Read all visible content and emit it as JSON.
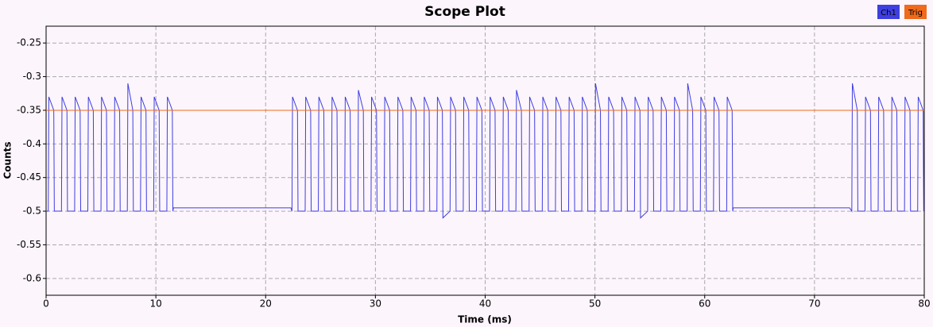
{
  "chart_data": {
    "type": "line",
    "title": "Scope Plot",
    "xlabel": "Time (ms)",
    "ylabel": "Counts",
    "xlim": [
      0,
      80
    ],
    "xticks": [
      0,
      10,
      20,
      30,
      40,
      50,
      60,
      70,
      80
    ],
    "ylim": [
      -0.625,
      -0.225
    ],
    "yticks": [
      -0.25,
      -0.3,
      -0.35,
      -0.4,
      -0.45,
      -0.5,
      -0.55,
      -0.6
    ],
    "grid": true,
    "legend": "top-right",
    "series": [
      {
        "name": "Ch1",
        "color": "#3f3fe0",
        "x": [
          0,
          0.2,
          0.25,
          0.7,
          0.75,
          1.4,
          1.45,
          1.9,
          1.95,
          2.6,
          2.65,
          3.1,
          3.15,
          3.8,
          3.85,
          4.3,
          4.35,
          5.0,
          5.05,
          5.5,
          5.55,
          6.2,
          6.25,
          6.7,
          6.75,
          7.4,
          7.45,
          7.9,
          7.95,
          8.6,
          8.65,
          9.1,
          9.15,
          9.8,
          9.85,
          10.3,
          10.35,
          11.0,
          11.05,
          11.5,
          11.55,
          11.6,
          22.3,
          22.4,
          22.45,
          22.9,
          22.95,
          23.6,
          23.65,
          24.1,
          24.15,
          24.8,
          24.85,
          25.3,
          25.35,
          26.0,
          26.05,
          26.5,
          26.55,
          27.2,
          27.25,
          27.7,
          27.75,
          28.4,
          28.45,
          28.9,
          28.95,
          29.6,
          29.65,
          30.1,
          30.15,
          30.8,
          30.85,
          31.3,
          31.35,
          32.0,
          32.05,
          32.5,
          32.55,
          33.2,
          33.25,
          33.7,
          33.75,
          34.4,
          34.45,
          34.9,
          34.95,
          35.6,
          35.65,
          36.1,
          36.15,
          36.8,
          36.85,
          37.3,
          37.35,
          38.0,
          38.05,
          38.5,
          38.55,
          39.2,
          39.25,
          39.7,
          39.75,
          40.4,
          40.45,
          40.9,
          40.95,
          41.6,
          41.65,
          42.1,
          42.15,
          42.8,
          42.85,
          43.3,
          43.35,
          44.0,
          44.05,
          44.5,
          44.55,
          45.2,
          45.25,
          45.7,
          45.75,
          46.4,
          46.45,
          46.9,
          46.95,
          47.6,
          47.65,
          48.1,
          48.15,
          48.8,
          48.85,
          49.3,
          49.35,
          50.0,
          50.05,
          50.5,
          50.55,
          51.2,
          51.25,
          51.7,
          51.75,
          52.4,
          52.45,
          52.9,
          52.95,
          53.6,
          53.65,
          54.1,
          54.15,
          54.8,
          54.85,
          55.3,
          55.35,
          56.0,
          56.05,
          56.5,
          56.55,
          57.2,
          57.25,
          57.7,
          57.75,
          58.4,
          58.45,
          58.9,
          58.95,
          59.6,
          59.65,
          60.1,
          60.15,
          60.8,
          60.85,
          61.3,
          61.35,
          62.0,
          62.05,
          62.5,
          62.55,
          62.6,
          73.2,
          73.4,
          73.45,
          73.9,
          73.95,
          74.6,
          74.65,
          75.1,
          75.15,
          75.8,
          75.85,
          76.3,
          76.35,
          77.0,
          77.05,
          77.5,
          77.55,
          78.2,
          78.25,
          78.7,
          78.75,
          79.4,
          79.45,
          79.9,
          79.95
        ],
        "values": [
          -0.5,
          -0.5,
          -0.33,
          -0.35,
          -0.5,
          -0.5,
          -0.33,
          -0.35,
          -0.5,
          -0.5,
          -0.33,
          -0.35,
          -0.5,
          -0.5,
          -0.33,
          -0.35,
          -0.5,
          -0.5,
          -0.33,
          -0.35,
          -0.5,
          -0.5,
          -0.33,
          -0.35,
          -0.5,
          -0.5,
          -0.31,
          -0.35,
          -0.5,
          -0.5,
          -0.33,
          -0.35,
          -0.5,
          -0.5,
          -0.33,
          -0.35,
          -0.5,
          -0.5,
          -0.33,
          -0.35,
          -0.5,
          -0.495,
          -0.495,
          -0.5,
          -0.33,
          -0.35,
          -0.5,
          -0.5,
          -0.33,
          -0.35,
          -0.5,
          -0.5,
          -0.33,
          -0.35,
          -0.5,
          -0.5,
          -0.33,
          -0.35,
          -0.5,
          -0.5,
          -0.33,
          -0.35,
          -0.5,
          -0.5,
          -0.32,
          -0.35,
          -0.5,
          -0.5,
          -0.33,
          -0.35,
          -0.5,
          -0.5,
          -0.33,
          -0.35,
          -0.5,
          -0.5,
          -0.33,
          -0.35,
          -0.5,
          -0.5,
          -0.33,
          -0.35,
          -0.5,
          -0.5,
          -0.33,
          -0.35,
          -0.5,
          -0.5,
          -0.33,
          -0.35,
          -0.51,
          -0.5,
          -0.33,
          -0.35,
          -0.5,
          -0.5,
          -0.33,
          -0.35,
          -0.5,
          -0.5,
          -0.33,
          -0.35,
          -0.5,
          -0.5,
          -0.33,
          -0.35,
          -0.5,
          -0.5,
          -0.33,
          -0.35,
          -0.5,
          -0.5,
          -0.32,
          -0.35,
          -0.5,
          -0.5,
          -0.33,
          -0.35,
          -0.5,
          -0.5,
          -0.33,
          -0.35,
          -0.5,
          -0.5,
          -0.33,
          -0.35,
          -0.5,
          -0.5,
          -0.33,
          -0.35,
          -0.5,
          -0.5,
          -0.33,
          -0.35,
          -0.5,
          -0.5,
          -0.31,
          -0.35,
          -0.5,
          -0.5,
          -0.33,
          -0.35,
          -0.5,
          -0.5,
          -0.33,
          -0.35,
          -0.5,
          -0.5,
          -0.33,
          -0.35,
          -0.51,
          -0.5,
          -0.33,
          -0.35,
          -0.5,
          -0.5,
          -0.33,
          -0.35,
          -0.5,
          -0.5,
          -0.33,
          -0.35,
          -0.5,
          -0.5,
          -0.31,
          -0.35,
          -0.5,
          -0.5,
          -0.33,
          -0.35,
          -0.5,
          -0.5,
          -0.33,
          -0.35,
          -0.5,
          -0.5,
          -0.33,
          -0.35,
          -0.5,
          -0.495,
          -0.495,
          -0.5,
          -0.31,
          -0.35,
          -0.5,
          -0.5,
          -0.33,
          -0.35,
          -0.5,
          -0.5,
          -0.33,
          -0.35,
          -0.5,
          -0.5,
          -0.33,
          -0.35,
          -0.5,
          -0.5,
          -0.33,
          -0.35,
          -0.5,
          -0.5,
          -0.33,
          -0.35,
          -0.5
        ]
      },
      {
        "name": "Trig",
        "color": "#f06a1c",
        "x": [
          0,
          80
        ],
        "values": [
          -0.35,
          -0.35
        ]
      }
    ]
  }
}
